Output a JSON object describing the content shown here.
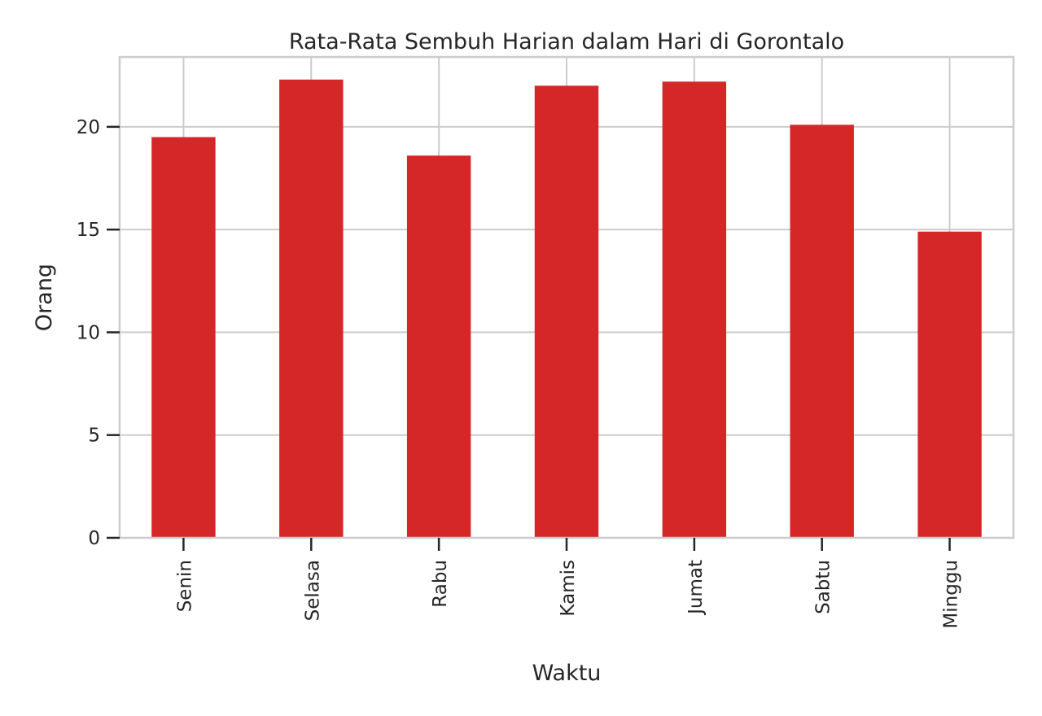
{
  "chart_data": {
    "type": "bar",
    "title": "Rata-Rata Sembuh Harian dalam Hari di Gorontalo",
    "xlabel": "Waktu",
    "ylabel": "Orang",
    "categories": [
      "Senin",
      "Selasa",
      "Rabu",
      "Kamis",
      "Jumat",
      "Sabtu",
      "Minggu"
    ],
    "values": [
      19.5,
      22.3,
      18.6,
      22.0,
      22.2,
      20.1,
      14.9
    ],
    "yticks": [
      0,
      5,
      10,
      15,
      20
    ],
    "ylim": [
      0,
      23.4
    ],
    "grid": true,
    "bar_color": "#d62728"
  }
}
